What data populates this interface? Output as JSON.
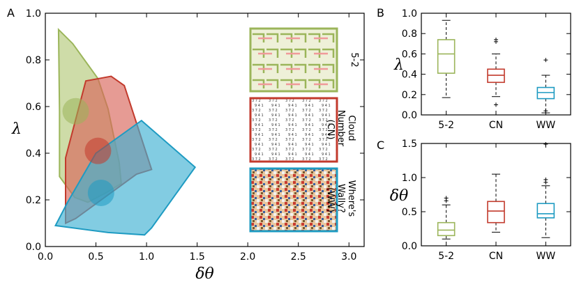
{
  "chart_data": [
    {
      "panel": "A",
      "type": "area",
      "xlabel": "δθ",
      "ylabel": "λ",
      "xlim": [
        0.0,
        3.15
      ],
      "ylim": [
        0.0,
        1.0
      ],
      "xticks": [
        "0.0",
        "0.5",
        "1.0",
        "1.5",
        "2.0",
        "2.5",
        "3.0"
      ],
      "yticks": [
        "0.0",
        "0.2",
        "0.4",
        "0.6",
        "0.8",
        "1.0"
      ],
      "series": [
        {
          "name": "5-2",
          "color": "#9bb55a",
          "fill": "#b4c97a",
          "hull": [
            [
              0.13,
              0.93
            ],
            [
              0.27,
              0.87
            ],
            [
              0.52,
              0.72
            ],
            [
              0.62,
              0.59
            ],
            [
              0.73,
              0.36
            ],
            [
              0.75,
              0.27
            ],
            [
              0.6,
              0.23
            ],
            [
              0.42,
              0.19
            ],
            [
              0.29,
              0.21
            ],
            [
              0.14,
              0.3
            ],
            [
              0.14,
              0.58
            ],
            [
              0.13,
              0.93
            ]
          ],
          "mean": [
            0.3,
            0.58
          ]
        },
        {
          "name": "CN",
          "color": "#c23a2c",
          "fill": "#d9665a",
          "hull": [
            [
              0.4,
              0.71
            ],
            [
              0.65,
              0.73
            ],
            [
              0.78,
              0.69
            ],
            [
              1.05,
              0.33
            ],
            [
              0.9,
              0.31
            ],
            [
              0.3,
              0.12
            ],
            [
              0.2,
              0.1
            ],
            [
              0.2,
              0.38
            ],
            [
              0.4,
              0.71
            ]
          ],
          "mean": [
            0.52,
            0.41
          ]
        },
        {
          "name": "WW",
          "color": "#1e9bc2",
          "fill": "#3fb0d2",
          "hull": [
            [
              0.95,
              0.54
            ],
            [
              1.48,
              0.34
            ],
            [
              1.05,
              0.08
            ],
            [
              0.98,
              0.05
            ],
            [
              0.62,
              0.06
            ],
            [
              0.1,
              0.09
            ],
            [
              0.22,
              0.19
            ],
            [
              0.5,
              0.4
            ],
            [
              0.95,
              0.54
            ]
          ],
          "mean": [
            0.55,
            0.23
          ]
        }
      ],
      "insets": [
        {
          "label": "5-2",
          "border": "#9bb55a"
        },
        {
          "label": "Cloud Number (CN)",
          "border": "#c23a2c"
        },
        {
          "label": "Where's Wally? (WW)",
          "border": "#1e9bc2"
        }
      ]
    },
    {
      "panel": "B",
      "type": "box",
      "ylabel": "λ",
      "ylim": [
        0.0,
        1.0
      ],
      "yticks": [
        "0.0",
        "0.2",
        "0.4",
        "0.6",
        "0.8",
        "1.0"
      ],
      "categories": [
        "5-2",
        "CN",
        "WW"
      ],
      "colors": [
        "#9bb55a",
        "#c23a2c",
        "#1e9bc2"
      ],
      "boxes": [
        {
          "whislo": 0.17,
          "q1": 0.41,
          "med": 0.6,
          "q3": 0.74,
          "whishi": 0.93,
          "fliers": []
        },
        {
          "whislo": 0.18,
          "q1": 0.32,
          "med": 0.39,
          "q3": 0.45,
          "whishi": 0.6,
          "fliers": [
            0.74,
            0.72,
            0.1
          ]
        },
        {
          "whislo": 0.02,
          "q1": 0.16,
          "med": 0.22,
          "q3": 0.27,
          "whishi": 0.39,
          "fliers": [
            0.54,
            0.04
          ]
        }
      ]
    },
    {
      "panel": "C",
      "type": "box",
      "ylabel": "δθ",
      "ylim": [
        0.0,
        1.5
      ],
      "yticks": [
        "0.0",
        "0.5",
        "1.0",
        "1.5"
      ],
      "categories": [
        "5-2",
        "CN",
        "WW"
      ],
      "colors": [
        "#9bb55a",
        "#c23a2c",
        "#1e9bc2"
      ],
      "boxes": [
        {
          "whislo": 0.1,
          "q1": 0.15,
          "med": 0.23,
          "q3": 0.34,
          "whishi": 0.6,
          "fliers": [
            0.7,
            0.66
          ]
        },
        {
          "whislo": 0.2,
          "q1": 0.34,
          "med": 0.51,
          "q3": 0.65,
          "whishi": 1.05,
          "fliers": []
        },
        {
          "whislo": 0.12,
          "q1": 0.41,
          "med": 0.47,
          "q3": 0.62,
          "whishi": 0.88,
          "fliers": [
            0.97,
            0.93,
            1.49
          ]
        }
      ]
    }
  ]
}
